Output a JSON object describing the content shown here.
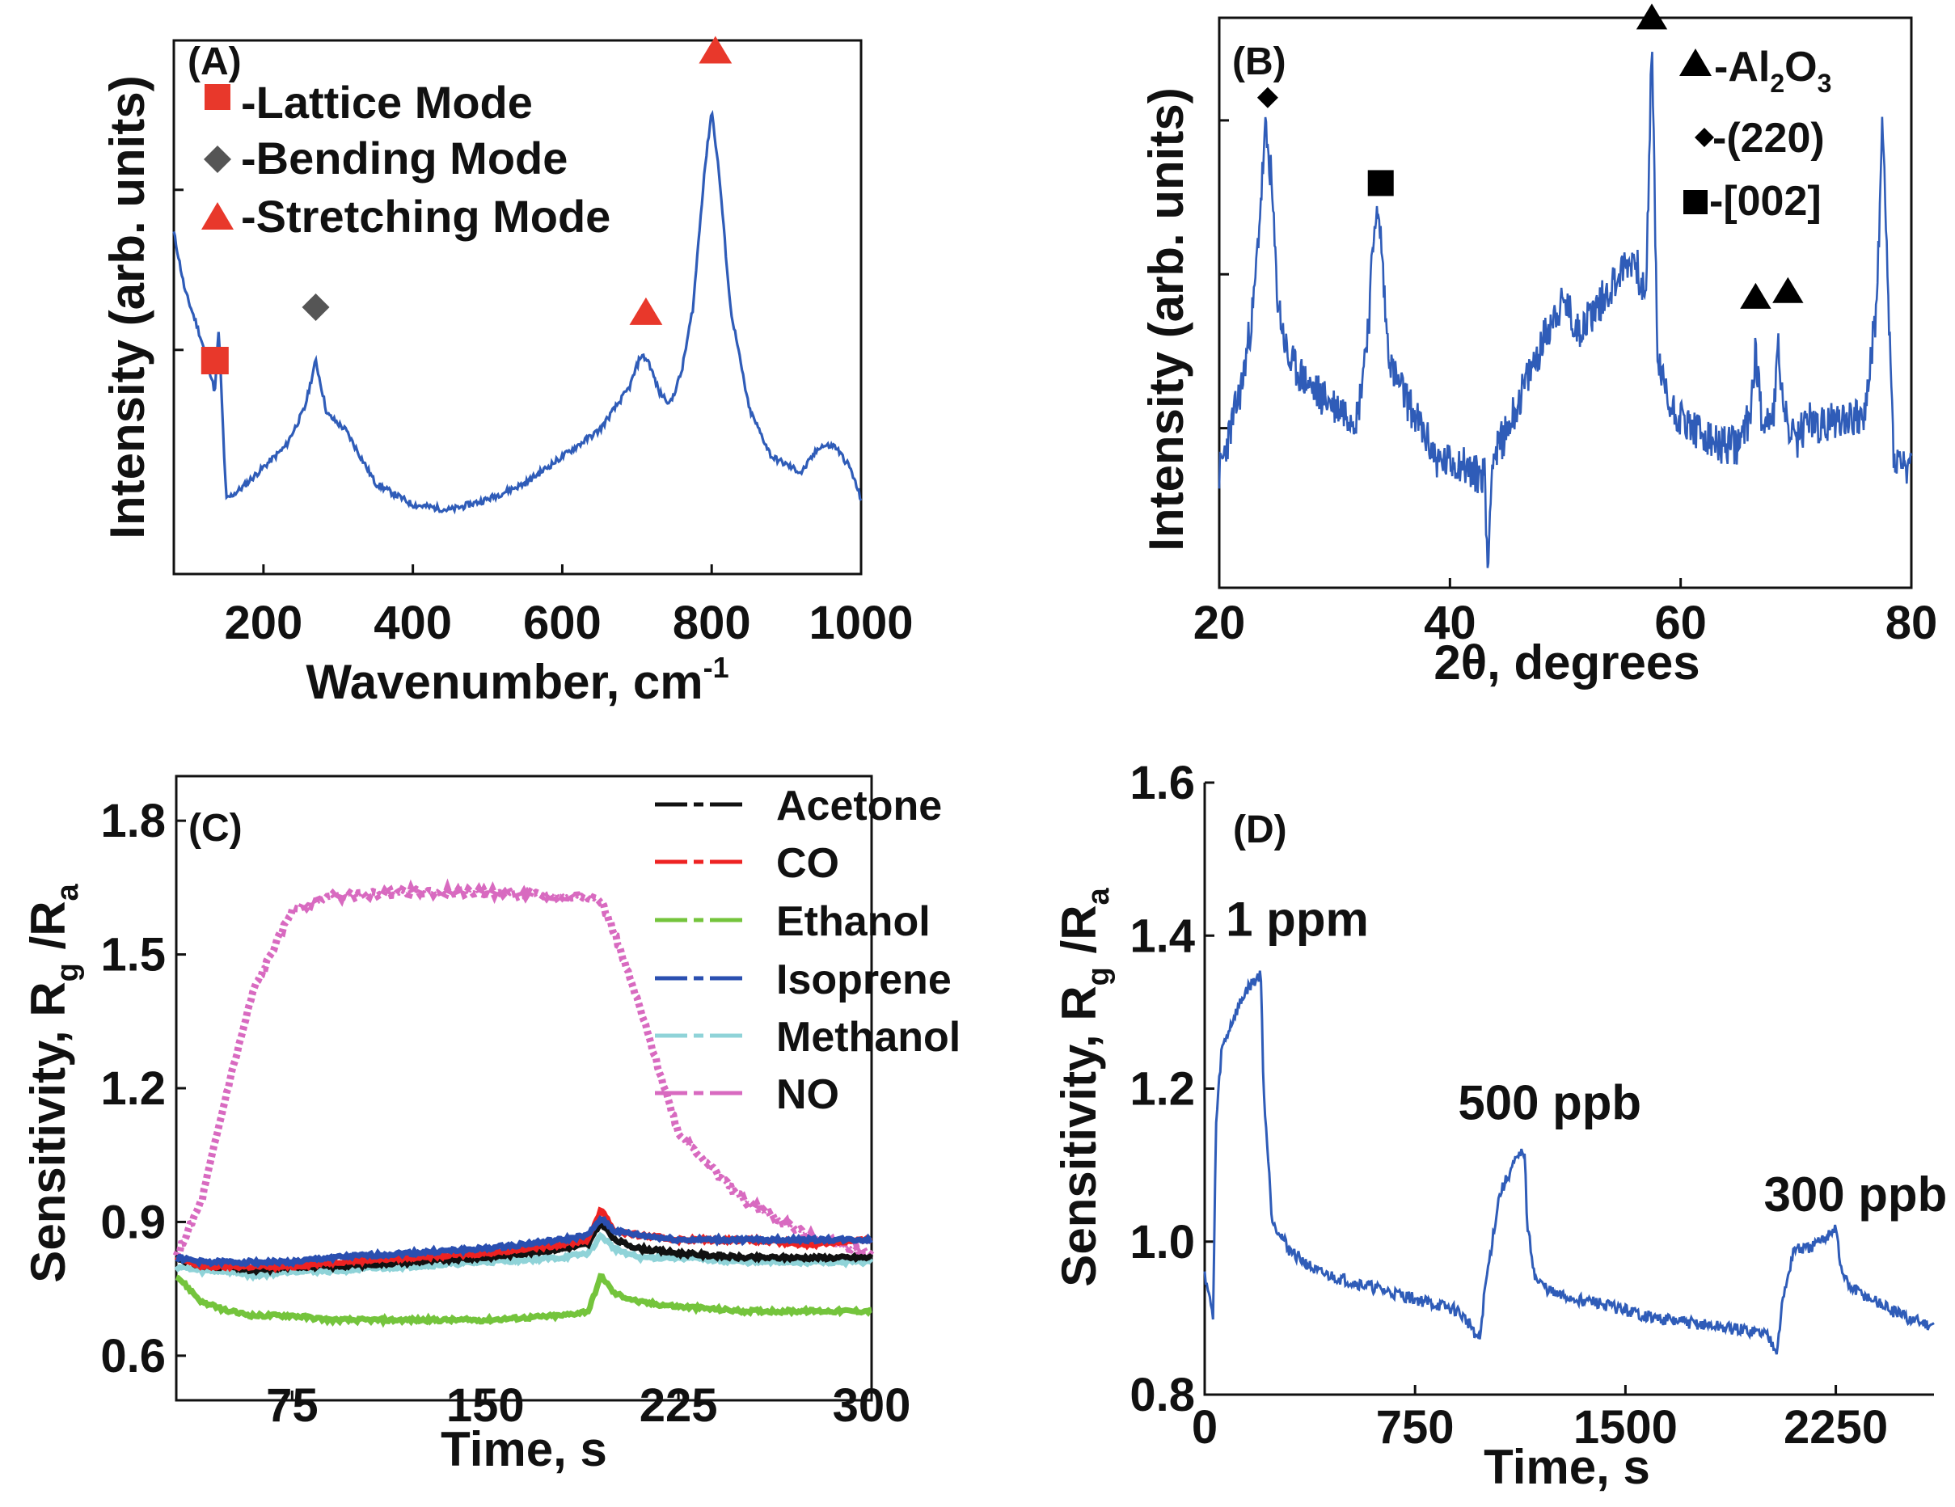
{
  "colors": {
    "spectrum": "#2f5cb8",
    "marker_red": "#e8382b",
    "marker_gray": "#555555",
    "marker_black": "#000000",
    "acetone": "#111111",
    "co": "#ee2222",
    "ethanol": "#74c43c",
    "isoprene": "#2a4fb0",
    "methanol": "#8fd3d8",
    "no": "#d86ac0"
  },
  "chart_data": [
    {
      "id": "A",
      "panel_label": "(A)",
      "type": "line",
      "title": "",
      "xlabel": "Wavenumber, cm",
      "xlabel_sup": "-1",
      "ylabel": "Intensity (arb. units)",
      "xlim": [
        80,
        1000
      ],
      "ylim": [
        0,
        1
      ],
      "xticks": [
        200,
        400,
        600,
        800,
        1000
      ],
      "x": [
        80,
        95,
        110,
        125,
        135,
        140,
        150,
        170,
        200,
        230,
        255,
        270,
        285,
        310,
        350,
        400,
        450,
        500,
        550,
        600,
        650,
        690,
        705,
        715,
        730,
        745,
        760,
        775,
        790,
        800,
        810,
        825,
        850,
        880,
        920,
        945,
        965,
        985,
        1000
      ],
      "y": [
        0.64,
        0.53,
        0.47,
        0.4,
        0.34,
        0.46,
        0.14,
        0.16,
        0.2,
        0.24,
        0.31,
        0.4,
        0.3,
        0.27,
        0.17,
        0.13,
        0.12,
        0.14,
        0.17,
        0.22,
        0.27,
        0.35,
        0.41,
        0.4,
        0.34,
        0.32,
        0.38,
        0.5,
        0.75,
        0.87,
        0.75,
        0.5,
        0.31,
        0.22,
        0.19,
        0.24,
        0.24,
        0.2,
        0.14
      ],
      "markers": [
        {
          "label": "Lattice Mode",
          "shape": "square",
          "x": 135,
          "y": 0.4
        },
        {
          "label": "Bending Mode",
          "shape": "diamond",
          "x": 270,
          "y": 0.5
        },
        {
          "label": "Stretching Mode",
          "shape": "triangle",
          "x": 712,
          "y": 0.49
        },
        {
          "label": "Stretching Mode",
          "shape": "triangle",
          "x": 805,
          "y": 0.98
        }
      ],
      "legend": [
        {
          "label": "-Lattice Mode",
          "shape": "square"
        },
        {
          "label": "-Bending Mode",
          "shape": "diamond"
        },
        {
          "label": "-Stretching Mode",
          "shape": "triangle"
        }
      ]
    },
    {
      "id": "B",
      "panel_label": "(B)",
      "type": "line",
      "title": "",
      "xlabel": "2θ, degrees",
      "ylabel": "Intensity (arb. units)",
      "xlim": [
        20,
        80
      ],
      "ylim": [
        0,
        1
      ],
      "xticks": [
        20,
        40,
        60,
        80
      ],
      "x": [
        20,
        21,
        22,
        23,
        24,
        24.5,
        25,
        25.5,
        26,
        28,
        30,
        32,
        33,
        33.5,
        34,
        34.5,
        35,
        37,
        39,
        41,
        42,
        43,
        43.3,
        43.6,
        45,
        47,
        49,
        50,
        51,
        53,
        55,
        56,
        57,
        57.5,
        58,
        59,
        61,
        63,
        65,
        66,
        66.5,
        67,
        68,
        68.5,
        69,
        70,
        71,
        72,
        74,
        76,
        77,
        77.5,
        78,
        78.5,
        79,
        80
      ],
      "y": [
        0.2,
        0.28,
        0.36,
        0.5,
        0.8,
        0.72,
        0.52,
        0.45,
        0.4,
        0.35,
        0.32,
        0.3,
        0.48,
        0.66,
        0.62,
        0.45,
        0.38,
        0.3,
        0.22,
        0.22,
        0.2,
        0.2,
        0.02,
        0.22,
        0.28,
        0.38,
        0.48,
        0.5,
        0.45,
        0.5,
        0.56,
        0.58,
        0.5,
        0.97,
        0.4,
        0.32,
        0.28,
        0.25,
        0.25,
        0.3,
        0.42,
        0.3,
        0.3,
        0.42,
        0.3,
        0.25,
        0.3,
        0.28,
        0.3,
        0.3,
        0.5,
        0.82,
        0.5,
        0.22,
        0.22,
        0.2
      ],
      "markers": [
        {
          "label": "(220)",
          "shape": "diamond",
          "x": 24.2,
          "y": 0.86
        },
        {
          "label": "[002]",
          "shape": "square",
          "x": 34,
          "y": 0.71
        },
        {
          "label": "Al2O3",
          "shape": "triangle",
          "x": 57.5,
          "y": 1.0
        },
        {
          "label": "Al2O3",
          "shape": "triangle",
          "x": 66.5,
          "y": 0.51
        },
        {
          "label": "Al2O3",
          "shape": "triangle",
          "x": 69.3,
          "y": 0.52
        }
      ],
      "legend": [
        {
          "shape": "triangle",
          "main": "-Al",
          "sub1": "2",
          "mid": "O",
          "sub2": "3"
        },
        {
          "shape": "diamond",
          "main": "-(220)"
        },
        {
          "shape": "square",
          "main": "-[002]"
        }
      ]
    },
    {
      "id": "C",
      "panel_label": "(C)",
      "type": "line",
      "title": "",
      "xlabel": "Time, s",
      "ylabel": "Sensitivity, R",
      "ylabel_sub1": "g",
      "ylabel_mid": " /R",
      "ylabel_sub2": "a",
      "xlim": [
        30,
        300
      ],
      "ylim": [
        0.5,
        1.9
      ],
      "xticks": [
        75,
        150,
        225,
        300
      ],
      "yticks": [
        0.6,
        0.9,
        1.2,
        1.5,
        1.8
      ],
      "x": [
        30,
        40,
        50,
        60,
        75,
        90,
        120,
        150,
        180,
        190,
        195,
        200,
        210,
        225,
        250,
        275,
        300
      ],
      "series": [
        {
          "name": "Acetone",
          "values": [
            0.82,
            0.8,
            0.8,
            0.79,
            0.8,
            0.8,
            0.81,
            0.82,
            0.84,
            0.85,
            0.9,
            0.86,
            0.84,
            0.83,
            0.82,
            0.82,
            0.82
          ]
        },
        {
          "name": "CO",
          "values": [
            0.82,
            0.8,
            0.8,
            0.8,
            0.8,
            0.81,
            0.82,
            0.83,
            0.85,
            0.86,
            0.93,
            0.88,
            0.87,
            0.86,
            0.86,
            0.85,
            0.86
          ]
        },
        {
          "name": "Ethanol",
          "values": [
            0.78,
            0.72,
            0.7,
            0.69,
            0.69,
            0.68,
            0.68,
            0.68,
            0.69,
            0.7,
            0.78,
            0.74,
            0.72,
            0.71,
            0.7,
            0.7,
            0.7
          ]
        },
        {
          "name": "Isoprene",
          "values": [
            0.82,
            0.81,
            0.81,
            0.81,
            0.81,
            0.82,
            0.83,
            0.84,
            0.86,
            0.87,
            0.91,
            0.88,
            0.87,
            0.86,
            0.86,
            0.86,
            0.86
          ]
        },
        {
          "name": "Methanol",
          "values": [
            0.8,
            0.79,
            0.79,
            0.78,
            0.79,
            0.79,
            0.8,
            0.81,
            0.82,
            0.83,
            0.87,
            0.84,
            0.82,
            0.82,
            0.81,
            0.81,
            0.81
          ]
        },
        {
          "name": "NO",
          "values": [
            0.82,
            0.95,
            1.2,
            1.42,
            1.6,
            1.63,
            1.64,
            1.64,
            1.63,
            1.63,
            1.62,
            1.55,
            1.38,
            1.1,
            0.95,
            0.87,
            0.83
          ]
        }
      ]
    },
    {
      "id": "D",
      "panel_label": "(D)",
      "type": "line",
      "title": "",
      "xlabel": "Time, s",
      "ylabel": "Sensitivity, R",
      "ylabel_sub1": "g",
      "ylabel_mid": " /R",
      "ylabel_sub2": "a",
      "xlim": [
        0,
        2600
      ],
      "ylim": [
        0.8,
        1.6
      ],
      "xticks": [
        0,
        750,
        1500,
        2250
      ],
      "yticks": [
        0.8,
        1.0,
        1.2,
        1.4,
        1.6
      ],
      "annotations": [
        {
          "text": "1 ppm",
          "x": 330,
          "y": 1.4
        },
        {
          "text": "500 ppb",
          "x": 1230,
          "y": 1.16
        },
        {
          "text": "300 ppb",
          "x": 2320,
          "y": 1.04
        }
      ],
      "x": [
        0,
        30,
        40,
        60,
        100,
        150,
        200,
        210,
        240,
        300,
        400,
        500,
        600,
        700,
        800,
        900,
        950,
        980,
        1000,
        1050,
        1100,
        1140,
        1150,
        1180,
        1250,
        1400,
        1600,
        1800,
        2000,
        2040,
        2060,
        2100,
        2150,
        2200,
        2250,
        2270,
        2300,
        2400,
        2500,
        2600
      ],
      "y": [
        0.96,
        0.9,
        1.15,
        1.25,
        1.29,
        1.33,
        1.35,
        1.2,
        1.03,
        0.99,
        0.96,
        0.95,
        0.94,
        0.93,
        0.92,
        0.91,
        0.89,
        0.87,
        0.94,
        1.06,
        1.1,
        1.12,
        1.02,
        0.95,
        0.93,
        0.92,
        0.9,
        0.89,
        0.88,
        0.86,
        0.92,
        0.99,
        0.99,
        1.0,
        1.02,
        0.96,
        0.94,
        0.92,
        0.9,
        0.89
      ]
    }
  ]
}
